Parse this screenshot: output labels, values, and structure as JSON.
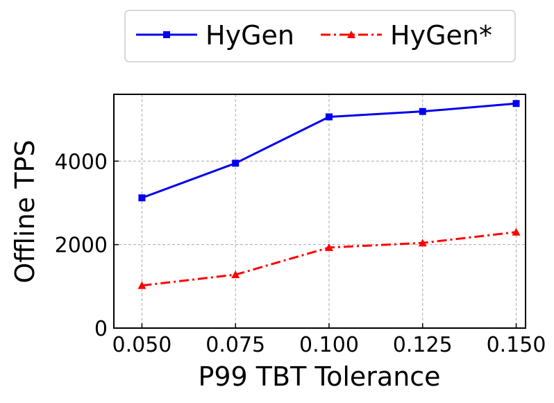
{
  "chart_data": {
    "type": "line",
    "title": "",
    "xlabel": "P99 TBT Tolerance",
    "ylabel": "Offline TPS",
    "x": [
      0.05,
      0.075,
      0.1,
      0.125,
      0.15
    ],
    "x_tick_labels": [
      "0.050",
      "0.075",
      "0.100",
      "0.125",
      "0.150"
    ],
    "y_ticks": [
      0,
      2000,
      4000
    ],
    "y_tick_labels": [
      "0",
      "2000",
      "4000"
    ],
    "xlim": [
      0.0425,
      0.1525
    ],
    "ylim": [
      0,
      5600
    ],
    "grid": true,
    "legend_position": "top-center, outside plot",
    "series": [
      {
        "name": "HyGen",
        "color": "#0000ee",
        "line_style": "solid",
        "marker": "square",
        "values": [
          3120,
          3950,
          5060,
          5190,
          5380
        ]
      },
      {
        "name": "HyGen*",
        "color": "#ff0000",
        "line_style": "dash-dot",
        "marker": "triangle",
        "values": [
          1020,
          1280,
          1930,
          2040,
          2300
        ]
      }
    ]
  }
}
